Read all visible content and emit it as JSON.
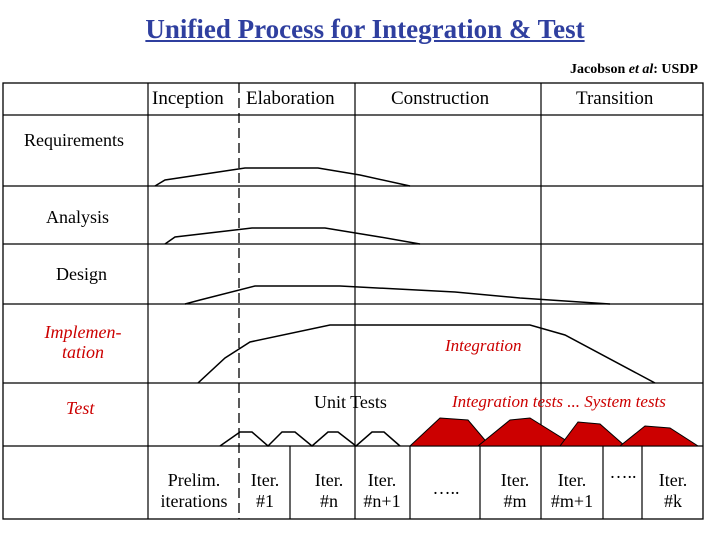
{
  "title": "Unified Process for Integration & Test",
  "attribution": {
    "prefix": "Jacobson ",
    "italic": "et al",
    "suffix": ": USDP"
  },
  "phases": [
    "Inception",
    "Elaboration",
    "Construction",
    "Transition"
  ],
  "workflows": {
    "requirements": "Requirements",
    "analysis": "Analysis",
    "design": "Design",
    "implementation": [
      "Implemen-",
      "tation"
    ],
    "test": "Test"
  },
  "annotations": {
    "integration": "Integration",
    "unit_tests": "Unit Tests",
    "integration_system_tests": "Integration tests ... System tests"
  },
  "iterations": {
    "prelim": [
      "Prelim.",
      "iterations"
    ],
    "iter1": [
      "Iter.",
      "#1"
    ],
    "itern": [
      "Iter.",
      "#n"
    ],
    "itern1": [
      "Iter.",
      "#n+1"
    ],
    "dots1": "…..",
    "iterm": [
      "Iter.",
      "#m"
    ],
    "iterm1": [
      "Iter.",
      "#m+1"
    ],
    "dots2": "…..",
    "iterk": [
      "Iter.",
      "#k"
    ]
  },
  "colors": {
    "title": "#2f3f9f",
    "red_fill": "#cc0000",
    "red_text": "#cc0000"
  }
}
